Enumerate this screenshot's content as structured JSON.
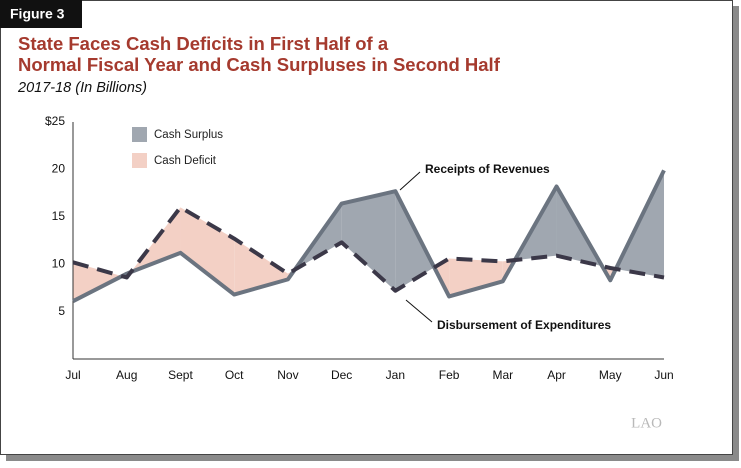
{
  "figure_label": "Figure 3",
  "chart_data": {
    "type": "line",
    "title": [
      "State Faces Cash Deficits in First Half of a",
      "Normal Fiscal Year and Cash Surpluses in Second Half"
    ],
    "subtitle": "2017-18 (In Billions)",
    "categories": [
      "Jul",
      "Aug",
      "Sept",
      "Oct",
      "Nov",
      "Dec",
      "Jan",
      "Feb",
      "Mar",
      "Apr",
      "May",
      "Jun"
    ],
    "series": [
      {
        "name": "Receipts of Revenues",
        "color": "#6b7480",
        "dashed": false,
        "values": [
          6.1,
          9.0,
          11.2,
          6.8,
          8.4,
          16.4,
          17.7,
          6.6,
          8.2,
          18.2,
          8.3,
          19.9
        ]
      },
      {
        "name": "Disbursement of Expenditures",
        "color": "#3b3848",
        "dashed": true,
        "values": [
          10.2,
          8.6,
          16.0,
          12.7,
          9.0,
          12.3,
          7.2,
          10.6,
          10.3,
          10.9,
          9.6,
          8.6
        ]
      }
    ],
    "fill_legend": [
      {
        "name": "Cash Surplus",
        "color": "#a0a7b0"
      },
      {
        "name": "Cash Deficit",
        "color": "#f3d0c5"
      }
    ],
    "ylim": [
      0,
      25
    ],
    "yticks": [
      {
        "value": 25,
        "label": "$25"
      },
      20,
      15,
      10,
      5
    ],
    "grid": false,
    "source_logo": "LAO"
  }
}
